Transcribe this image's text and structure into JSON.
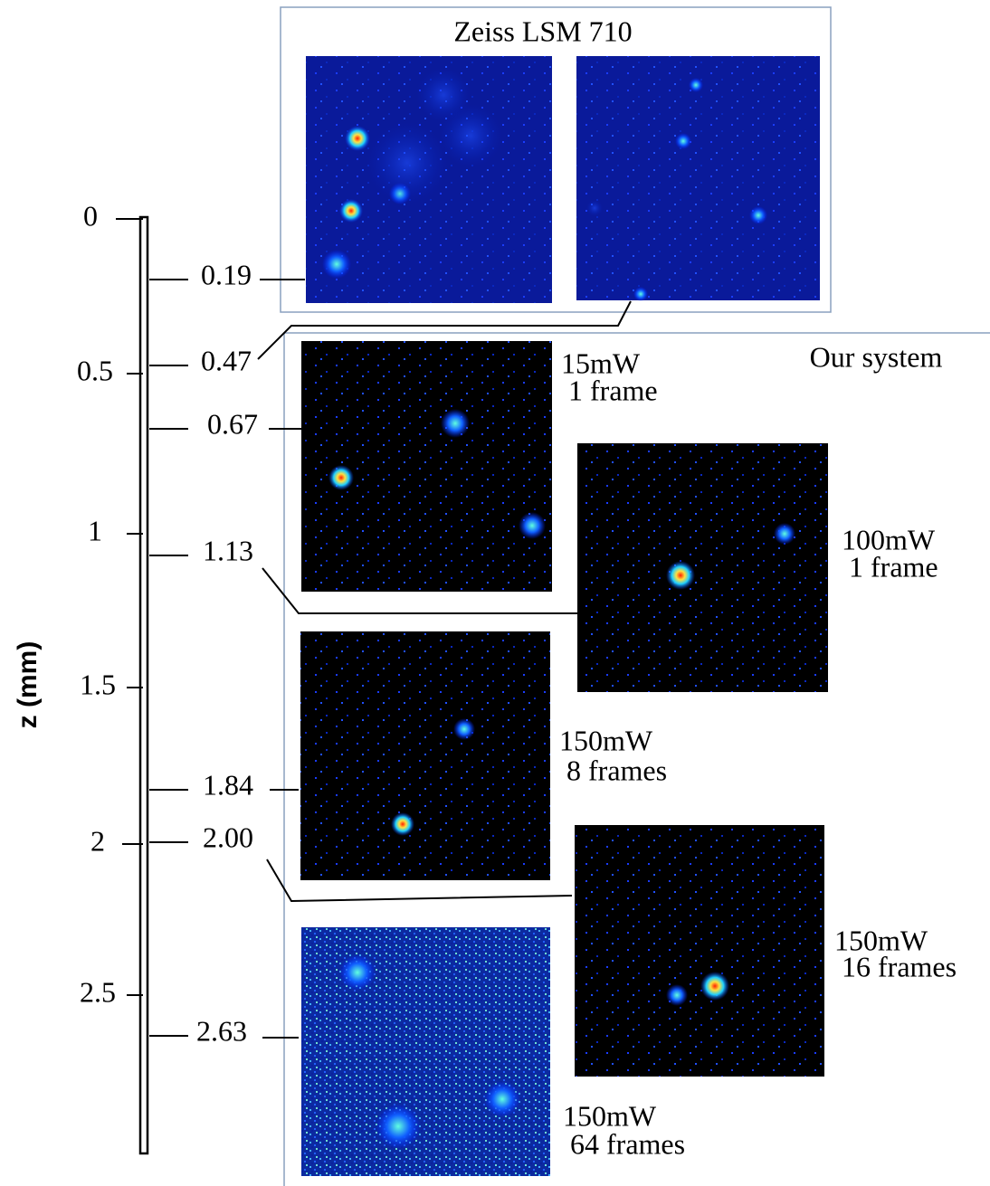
{
  "zeiss": {
    "title": "Zeiss LSM 710"
  },
  "our_system": {
    "title": "Our system",
    "panels": [
      {
        "power": "15mW",
        "frames": "1 frame"
      },
      {
        "power": "100mW",
        "frames": "1 frame"
      },
      {
        "power": "150mW",
        "frames": "8 frames"
      },
      {
        "power": "150mW",
        "frames": "16 frames"
      },
      {
        "power": "150mW",
        "frames": "64 frames"
      }
    ]
  },
  "scale": {
    "axis_label": "z (mm)",
    "ticks": [
      "0",
      "0.5",
      "1",
      "1.5",
      "2",
      "2.5"
    ],
    "depths": [
      "0.19",
      "0.47",
      "0.67",
      "1.13",
      "1.84",
      "2.00",
      "2.63"
    ]
  }
}
